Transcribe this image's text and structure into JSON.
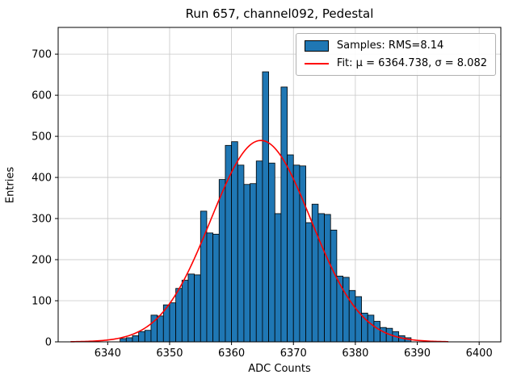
{
  "chart_data": {
    "type": "bar",
    "title": "Run 657, channel092, Pedestal",
    "xlabel": "ADC Counts",
    "ylabel": "Entries",
    "xlim": [
      6332.0,
      6403.5
    ],
    "ylim": [
      0,
      765
    ],
    "xticks": [
      6340,
      6350,
      6360,
      6370,
      6380,
      6390,
      6400
    ],
    "yticks": [
      0,
      100,
      200,
      300,
      400,
      500,
      600,
      700
    ],
    "grid": true,
    "legend_position": "upper right",
    "bar_color": "#1f77b4",
    "bar_edge_color": "#000000",
    "bins_start": 6342,
    "bin_width": 1,
    "values": [
      8,
      10,
      15,
      25,
      28,
      65,
      63,
      90,
      95,
      130,
      150,
      165,
      163,
      318,
      265,
      262,
      395,
      478,
      487,
      430,
      383,
      385,
      440,
      657,
      435,
      312,
      620,
      455,
      430,
      428,
      290,
      335,
      312,
      310,
      272,
      160,
      157,
      125,
      110,
      70,
      65,
      50,
      35,
      33,
      25,
      15,
      10
    ],
    "fit": {
      "type": "gaussian",
      "amplitude": 490,
      "mu": 6364.738,
      "sigma": 8.082,
      "color": "#ff0000",
      "range": [
        6334,
        6395
      ]
    },
    "legend": [
      {
        "swatch": "patch",
        "color": "#1f77b4",
        "label": "Samples: RMS=8.14"
      },
      {
        "swatch": "line",
        "color": "#ff0000",
        "label": "Fit: μ = 6364.738, σ = 8.082"
      }
    ]
  }
}
